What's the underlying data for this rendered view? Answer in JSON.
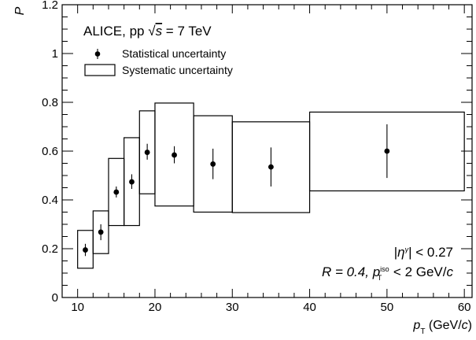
{
  "chart_data": {
    "type": "scatter",
    "title": "",
    "collaboration": "ALICE, pp",
    "energy_label": "= 7 TeV",
    "annotations": {
      "eta_cut": "| < 0.27",
      "r_label": "R = 0.4,",
      "iso_cut": "< 2 GeV/"
    },
    "legend": {
      "position": "top-left",
      "entries": [
        "Statistical uncertainty",
        "Systematic uncertainty"
      ]
    },
    "xlabel": "(GeV/",
    "ylabel": "P",
    "xlim": [
      8,
      61
    ],
    "ylim": [
      0,
      1.2
    ],
    "x_ticks": [
      10,
      20,
      30,
      40,
      50,
      60
    ],
    "y_ticks": [
      0,
      0.2,
      0.4,
      0.6,
      0.8,
      1,
      1.2
    ],
    "y_tick_labels": [
      "0",
      "0.2",
      "0.4",
      "0.6",
      "0.8",
      "1",
      "1.2"
    ],
    "grid": false,
    "points": [
      {
        "x_low": 10,
        "x_high": 12,
        "x": 11,
        "y": 0.195,
        "stat_low": 0.17,
        "stat_high": 0.22,
        "sys_low": 0.12,
        "sys_high": 0.275
      },
      {
        "x_low": 12,
        "x_high": 14,
        "x": 13,
        "y": 0.268,
        "stat_low": 0.235,
        "stat_high": 0.3,
        "sys_low": 0.18,
        "sys_high": 0.355
      },
      {
        "x_low": 14,
        "x_high": 16,
        "x": 15,
        "y": 0.432,
        "stat_low": 0.41,
        "stat_high": 0.455,
        "sys_low": 0.295,
        "sys_high": 0.57
      },
      {
        "x_low": 16,
        "x_high": 18,
        "x": 17,
        "y": 0.474,
        "stat_low": 0.445,
        "stat_high": 0.505,
        "sys_low": 0.295,
        "sys_high": 0.655
      },
      {
        "x_low": 18,
        "x_high": 20,
        "x": 19,
        "y": 0.595,
        "stat_low": 0.565,
        "stat_high": 0.63,
        "sys_low": 0.425,
        "sys_high": 0.765
      },
      {
        "x_low": 20,
        "x_high": 25,
        "x": 22.5,
        "y": 0.584,
        "stat_low": 0.55,
        "stat_high": 0.62,
        "sys_low": 0.375,
        "sys_high": 0.797
      },
      {
        "x_low": 25,
        "x_high": 30,
        "x": 27.5,
        "y": 0.547,
        "stat_low": 0.485,
        "stat_high": 0.61,
        "sys_low": 0.35,
        "sys_high": 0.745
      },
      {
        "x_low": 30,
        "x_high": 40,
        "x": 35,
        "y": 0.535,
        "stat_low": 0.455,
        "stat_high": 0.615,
        "sys_low": 0.348,
        "sys_high": 0.72
      },
      {
        "x_low": 40,
        "x_high": 60,
        "x": 50,
        "y": 0.6,
        "stat_low": 0.49,
        "stat_high": 0.71,
        "sys_low": 0.437,
        "sys_high": 0.76
      }
    ]
  }
}
